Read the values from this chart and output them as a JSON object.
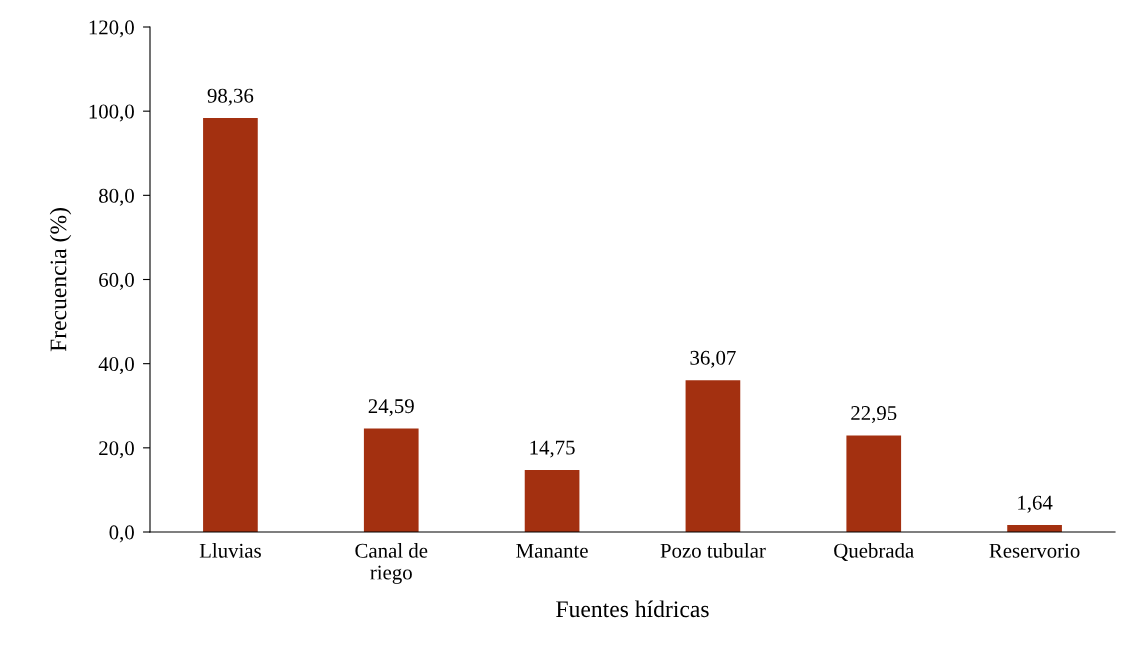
{
  "chart_data": {
    "type": "bar",
    "xlabel": "Fuentes hídricas",
    "ylabel": "Frecuencia (%)",
    "categories": [
      "Lluvias",
      "Canal de\nriego",
      "Manante",
      "Pozo tubular",
      "Quebrada",
      "Reservorio"
    ],
    "values": [
      98.36,
      24.59,
      14.75,
      36.07,
      22.95,
      1.64
    ],
    "value_labels": [
      "98,36",
      "24,59",
      "14,75",
      "36,07",
      "22,95",
      "1,64"
    ],
    "color": "#a33010",
    "ylim": [
      0,
      120
    ],
    "yticks": [
      {
        "value": 0,
        "label": "0,0"
      },
      {
        "value": 20,
        "label": "20,0"
      },
      {
        "value": 40,
        "label": "40,0"
      },
      {
        "value": 60,
        "label": "60,0"
      },
      {
        "value": 80,
        "label": "80,0"
      },
      {
        "value": 100,
        "label": "100,0"
      },
      {
        "value": 120,
        "label": "120,0"
      }
    ],
    "grid": false,
    "legend": false
  }
}
